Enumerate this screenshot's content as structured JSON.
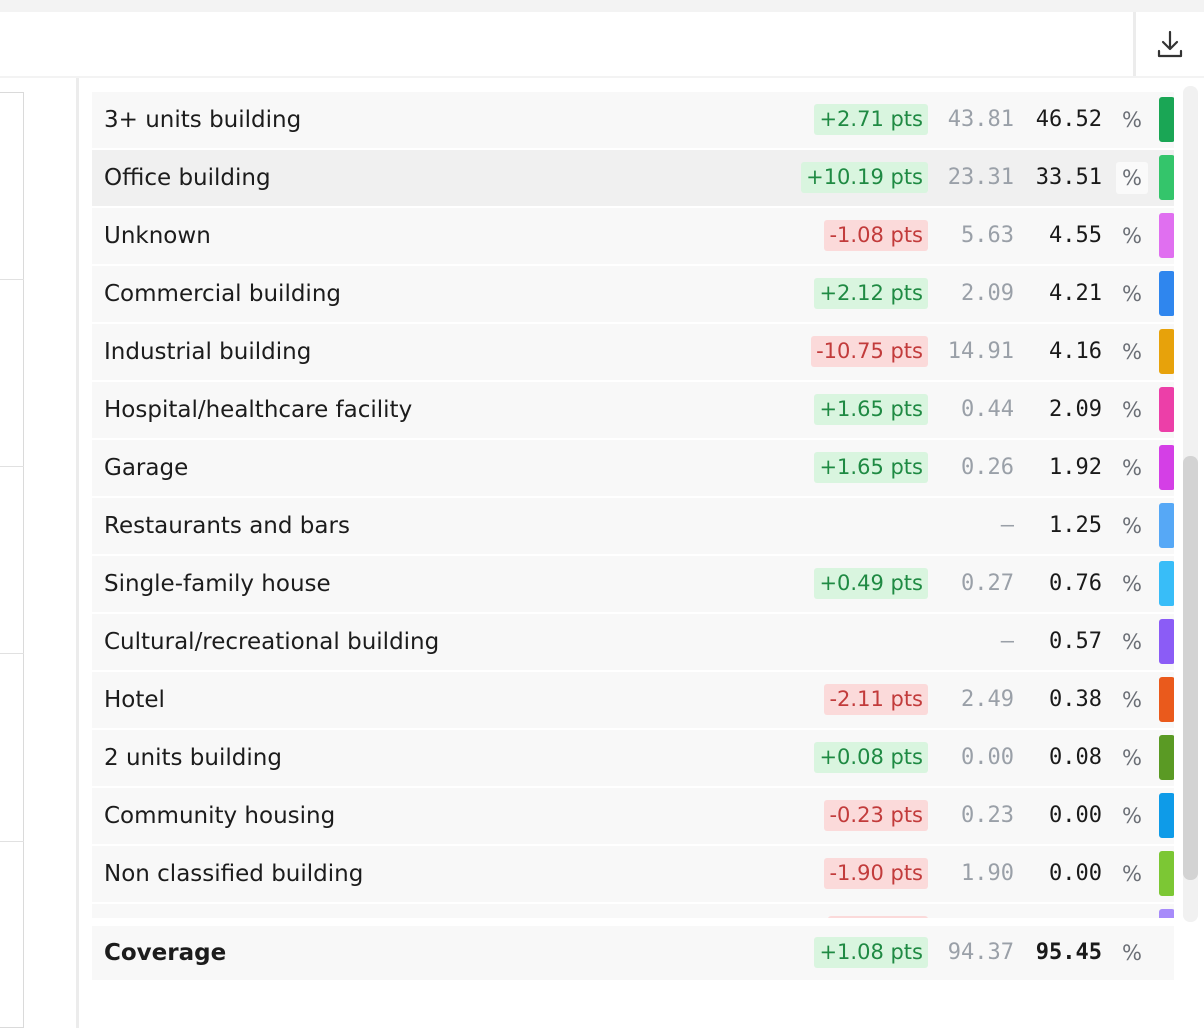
{
  "toolbar": {
    "download_icon": "download-icon"
  },
  "rows": [
    {
      "label": "3+ units building",
      "delta": "+2.71 pts",
      "trend": "pos",
      "prev": "43.81",
      "cur": "46.52",
      "unit": "%",
      "color": "#1aa655"
    },
    {
      "label": "Office building",
      "delta": "+10.19 pts",
      "trend": "pos",
      "prev": "23.31",
      "cur": "33.51",
      "unit": "%",
      "color": "#34c56b"
    },
    {
      "label": "Unknown",
      "delta": "-1.08 pts",
      "trend": "neg",
      "prev": "5.63",
      "cur": "4.55",
      "unit": "%",
      "color": "#e06ff0"
    },
    {
      "label": "Commercial building",
      "delta": "+2.12 pts",
      "trend": "pos",
      "prev": "2.09",
      "cur": "4.21",
      "unit": "%",
      "color": "#2f86ee"
    },
    {
      "label": "Industrial building",
      "delta": "-10.75 pts",
      "trend": "neg",
      "prev": "14.91",
      "cur": "4.16",
      "unit": "%",
      "color": "#e7a20b"
    },
    {
      "label": "Hospital/healthcare facility",
      "delta": "+1.65 pts",
      "trend": "pos",
      "prev": "0.44",
      "cur": "2.09",
      "unit": "%",
      "color": "#ec3fa8"
    },
    {
      "label": "Garage",
      "delta": "+1.65 pts",
      "trend": "pos",
      "prev": "0.26",
      "cur": "1.92",
      "unit": "%",
      "color": "#d43fe6"
    },
    {
      "label": "Restaurants and bars",
      "delta": "",
      "trend": "",
      "prev": "–",
      "cur": "1.25",
      "unit": "%",
      "color": "#56a8f6"
    },
    {
      "label": "Single-family house",
      "delta": "+0.49 pts",
      "trend": "pos",
      "prev": "0.27",
      "cur": "0.76",
      "unit": "%",
      "color": "#38bdf8"
    },
    {
      "label": "Cultural/recreational building",
      "delta": "",
      "trend": "",
      "prev": "–",
      "cur": "0.57",
      "unit": "%",
      "color": "#8b5cf6"
    },
    {
      "label": "Hotel",
      "delta": "-2.11 pts",
      "trend": "neg",
      "prev": "2.49",
      "cur": "0.38",
      "unit": "%",
      "color": "#ea5a1c"
    },
    {
      "label": "2 units building",
      "delta": "+0.08 pts",
      "trend": "pos",
      "prev": "0.00",
      "cur": "0.08",
      "unit": "%",
      "color": "#5a9a24"
    },
    {
      "label": "Community housing",
      "delta": "-0.23 pts",
      "trend": "neg",
      "prev": "0.23",
      "cur": "0.00",
      "unit": "%",
      "color": "#0e9be8"
    },
    {
      "label": "Non classified building",
      "delta": "-1.90 pts",
      "trend": "neg",
      "prev": "1.90",
      "cur": "0.00",
      "unit": "%",
      "color": "#7cc734"
    },
    {
      "label": "",
      "delta": "",
      "trend": "neg",
      "prev": "",
      "cur": "",
      "unit": "",
      "color": "#a78bfa"
    }
  ],
  "footer": {
    "label": "Coverage",
    "delta": "+1.08 pts",
    "trend": "pos",
    "prev": "94.37",
    "cur": "95.45",
    "unit": "%"
  }
}
